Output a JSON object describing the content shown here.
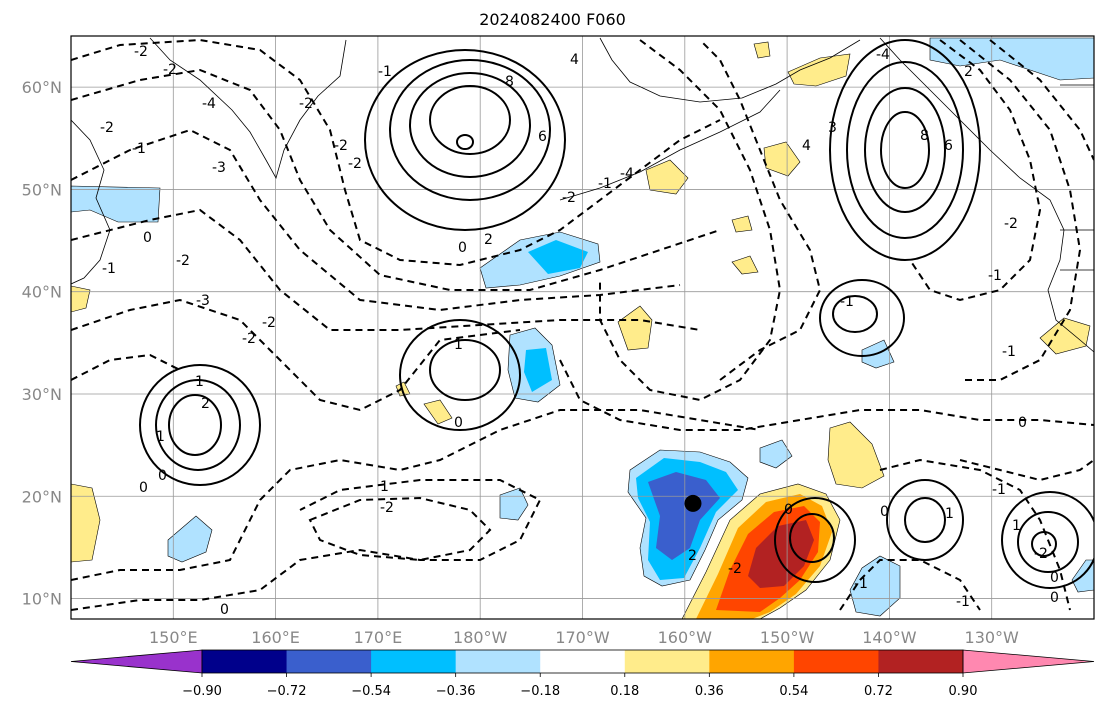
{
  "title": "2024082400 F060",
  "map": {
    "projection": "PlateCarree",
    "lon_range": [
      140,
      240
    ],
    "lat_range": [
      8,
      65
    ],
    "grid": true,
    "lon_ticks": [
      {
        "lon": 150,
        "label": "150°E"
      },
      {
        "lon": 160,
        "label": "160°E"
      },
      {
        "lon": 170,
        "label": "170°E"
      },
      {
        "lon": 180,
        "label": "180°W"
      },
      {
        "lon": 190,
        "label": "170°W"
      },
      {
        "lon": 200,
        "label": "160°W"
      },
      {
        "lon": 210,
        "label": "150°W"
      },
      {
        "lon": 220,
        "label": "140°W"
      },
      {
        "lon": 230,
        "label": "130°W"
      }
    ],
    "lat_ticks": [
      {
        "lat": 10,
        "label": "10°N"
      },
      {
        "lat": 20,
        "label": "20°N"
      },
      {
        "lat": 30,
        "label": "30°N"
      },
      {
        "lat": 40,
        "label": "40°N"
      },
      {
        "lat": 50,
        "label": "50°N"
      },
      {
        "lat": 60,
        "label": "60°N"
      }
    ],
    "storm_center": {
      "lon": 200.8,
      "lat": 19.3
    },
    "contour_labels": [
      "-2",
      "-2",
      "-4",
      "-2",
      "-1",
      "-3",
      "0",
      "-2",
      "-1",
      "-3",
      "-2",
      "-2",
      "-2",
      "-1",
      "-2",
      "-2",
      "1",
      "2",
      "0",
      "0",
      "1",
      "0",
      "2",
      "4",
      "6",
      "8",
      "-4",
      "-2",
      "-1",
      "1",
      "0",
      "0",
      "-2",
      "1",
      "-1",
      "-2",
      "-4",
      "2",
      "3",
      "4",
      "6",
      "8",
      "-2",
      "-1",
      "1",
      "-1",
      "-2",
      "0",
      "0",
      "0",
      "1",
      "-1",
      "0",
      "-1",
      "2",
      "0",
      "-1"
    ]
  },
  "colorbar": {
    "ticks": [
      "−0.90",
      "−0.72",
      "−0.54",
      "−0.36",
      "−0.18",
      "0.18",
      "0.36",
      "0.54",
      "0.72",
      "0.90"
    ],
    "colors": [
      "#9932cc",
      "#00008b",
      "#3a5fcd",
      "#00bfff",
      "#b0e2ff",
      "#ffffff",
      "#ffec8b",
      "#ffa500",
      "#ff4500",
      "#b22222",
      "#ff88b0"
    ]
  }
}
